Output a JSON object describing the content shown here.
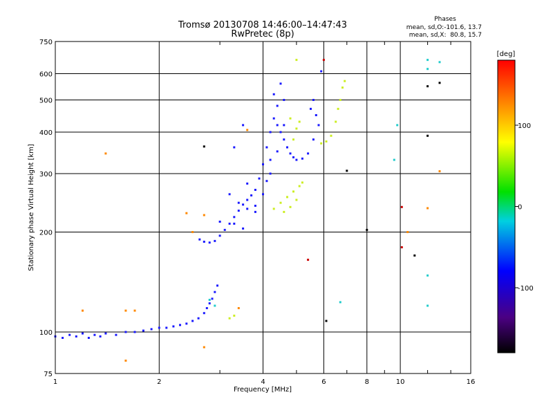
{
  "chart_data": {
    "type": "scatter",
    "title": "Tromsø 20130708 14:46:00–14:47:43",
    "subtitle": "RwPretec (8p)",
    "xlabel": "Frequency [MHz]",
    "ylabel": "Stationary phase Virtual Height [km]",
    "x_scale": "log",
    "y_scale": "log",
    "xlim": [
      1,
      16
    ],
    "ylim": [
      75,
      750
    ],
    "x_ticks": [
      1,
      2,
      4,
      6,
      8,
      10,
      16
    ],
    "x_tick_labels": [
      "1",
      "2",
      "4",
      "6",
      "8",
      "10",
      "16"
    ],
    "y_ticks": [
      75,
      100,
      200,
      300,
      400,
      500,
      600,
      750
    ],
    "y_tick_labels": [
      "75",
      "100",
      "200",
      "300",
      "400",
      "500",
      "600",
      "750"
    ],
    "grid": true,
    "stats": {
      "heading": "Phases",
      "line_o": "mean, sd,O:-101.6, 13.7",
      "line_x": "mean, sd,X:  80.8, 15.7"
    },
    "colorbar": {
      "label": "[deg]",
      "range": [
        -180,
        180
      ],
      "tick_values": [
        100,
        0,
        -100
      ],
      "tick_labels": [
        "100",
        "0",
        "-100"
      ]
    },
    "series": [
      {
        "color": "#1a1aff",
        "points": [
          [
            1.0,
            97
          ],
          [
            1.05,
            96
          ],
          [
            1.1,
            98
          ],
          [
            1.15,
            97
          ],
          [
            1.2,
            99
          ],
          [
            1.25,
            96
          ],
          [
            1.3,
            98
          ],
          [
            1.35,
            97
          ],
          [
            1.4,
            99
          ],
          [
            1.5,
            98
          ],
          [
            1.6,
            100
          ],
          [
            1.7,
            100
          ],
          [
            1.8,
            101
          ],
          [
            1.9,
            102
          ],
          [
            2.0,
            103
          ],
          [
            2.1,
            103
          ],
          [
            2.2,
            104
          ],
          [
            2.3,
            105
          ],
          [
            2.4,
            106
          ],
          [
            2.5,
            108
          ],
          [
            2.6,
            110
          ],
          [
            2.7,
            114
          ],
          [
            2.75,
            118
          ],
          [
            2.8,
            122
          ],
          [
            2.85,
            126
          ],
          [
            2.9,
            132
          ],
          [
            2.95,
            138
          ],
          [
            2.62,
            190
          ],
          [
            2.7,
            187
          ],
          [
            2.8,
            186
          ],
          [
            2.9,
            188
          ],
          [
            3.0,
            195
          ],
          [
            3.1,
            203
          ],
          [
            3.2,
            212
          ],
          [
            3.3,
            222
          ],
          [
            3.4,
            232
          ],
          [
            3.5,
            242
          ],
          [
            3.6,
            250
          ],
          [
            3.7,
            258
          ],
          [
            3.8,
            268
          ],
          [
            3.9,
            290
          ],
          [
            4.0,
            320
          ],
          [
            4.1,
            360
          ],
          [
            4.2,
            400
          ],
          [
            4.3,
            440
          ],
          [
            4.4,
            420
          ],
          [
            4.5,
            400
          ],
          [
            4.6,
            380
          ],
          [
            4.7,
            360
          ],
          [
            4.8,
            345
          ],
          [
            4.9,
            336
          ],
          [
            5.0,
            330
          ],
          [
            5.2,
            333
          ],
          [
            5.4,
            345
          ],
          [
            5.6,
            380
          ],
          [
            5.8,
            420
          ],
          [
            5.7,
            450
          ],
          [
            3.2,
            260
          ],
          [
            3.4,
            245
          ],
          [
            3.6,
            235
          ],
          [
            3.8,
            230
          ],
          [
            4.0,
            260
          ],
          [
            4.2,
            300
          ],
          [
            4.4,
            350
          ],
          [
            4.6,
            420
          ],
          [
            4.4,
            480
          ],
          [
            4.6,
            500
          ],
          [
            4.3,
            520
          ],
          [
            4.5,
            560
          ],
          [
            5.5,
            470
          ],
          [
            5.6,
            500
          ],
          [
            5.9,
            610
          ],
          [
            3.5,
            420
          ],
          [
            3.3,
            360
          ],
          [
            3.6,
            280
          ],
          [
            3.0,
            215
          ],
          [
            3.3,
            212
          ],
          [
            3.5,
            205
          ],
          [
            3.8,
            240
          ],
          [
            4.1,
            285
          ],
          [
            4.2,
            330
          ]
        ]
      },
      {
        "color": "#ccee22",
        "points": [
          [
            4.3,
            235
          ],
          [
            4.5,
            245
          ],
          [
            4.7,
            255
          ],
          [
            4.9,
            265
          ],
          [
            5.1,
            275
          ],
          [
            5.2,
            282
          ],
          [
            4.6,
            230
          ],
          [
            4.8,
            238
          ],
          [
            5.0,
            250
          ],
          [
            4.9,
            380
          ],
          [
            5.0,
            410
          ],
          [
            5.1,
            430
          ],
          [
            4.8,
            440
          ],
          [
            5.9,
            370
          ],
          [
            6.1,
            375
          ],
          [
            6.3,
            390
          ],
          [
            6.5,
            430
          ],
          [
            6.6,
            470
          ],
          [
            6.7,
            500
          ],
          [
            6.8,
            545
          ],
          [
            6.9,
            570
          ],
          [
            5.0,
            660
          ],
          [
            3.2,
            110
          ],
          [
            3.3,
            112
          ]
        ]
      },
      {
        "color": "#ff8800",
        "points": [
          [
            1.2,
            116
          ],
          [
            1.6,
            116
          ],
          [
            1.7,
            116
          ],
          [
            1.6,
            82
          ],
          [
            1.4,
            345
          ],
          [
            2.4,
            228
          ],
          [
            2.7,
            225
          ],
          [
            2.7,
            90
          ],
          [
            2.5,
            200
          ],
          [
            3.4,
            118
          ],
          [
            3.6,
            406
          ],
          [
            10.5,
            200
          ],
          [
            12,
            236
          ],
          [
            13,
            305
          ]
        ]
      },
      {
        "color": "#22cccc",
        "points": [
          [
            2.8,
            125
          ],
          [
            2.9,
            120
          ],
          [
            9.8,
            420
          ],
          [
            9.6,
            330
          ],
          [
            12,
            660
          ],
          [
            12,
            620
          ],
          [
            13,
            650
          ],
          [
            12,
            120
          ],
          [
            12,
            148
          ],
          [
            6.7,
            123
          ]
        ]
      },
      {
        "color": "#000000",
        "points": [
          [
            2.7,
            362
          ],
          [
            7.0,
            306
          ],
          [
            8.0,
            203
          ],
          [
            11,
            170
          ],
          [
            12,
            390
          ],
          [
            12,
            550
          ],
          [
            13,
            563
          ],
          [
            6.1,
            108
          ]
        ]
      },
      {
        "color": "#cc0000",
        "points": [
          [
            10.1,
            180
          ],
          [
            10.1,
            238
          ],
          [
            5.4,
            165
          ],
          [
            6.0,
            660
          ]
        ]
      }
    ]
  }
}
